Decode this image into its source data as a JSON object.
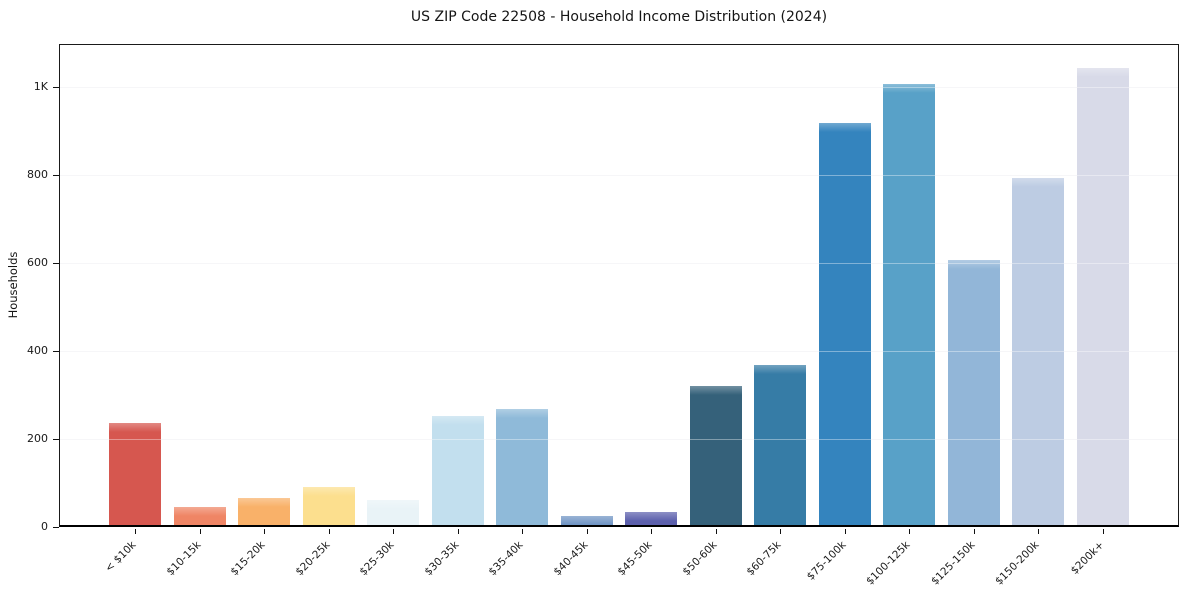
{
  "colors": {
    "figure_background": "#ffffff",
    "text": "#151515",
    "spine": "#1a1a1a",
    "gridline": "#f0f0f4"
  },
  "chart_data": {
    "type": "bar",
    "title": "US ZIP Code 22508 - Household Income Distribution (2024)",
    "xlabel": "",
    "ylabel": "Households",
    "ylim": [
      0,
      1097
    ],
    "grid": "horizontal-faint",
    "legend": "none",
    "categories": [
      "< $10k",
      "$10-15k",
      "$15-20k",
      "$20-25k",
      "$25-30k",
      "$30-35k",
      "$35-40k",
      "$40-45k",
      "$45-50k",
      "$50-60k",
      "$60-75k",
      "$75-100k",
      "$100-125k",
      "$125-150k",
      "$150-200k",
      "$200k+"
    ],
    "values": [
      235,
      46,
      66,
      90,
      62,
      251,
      268,
      25,
      34,
      320,
      367,
      918,
      1005,
      606,
      793,
      1043
    ],
    "bar_colors": [
      "#d6574f",
      "#ef8565",
      "#f9b169",
      "#fcdf8e",
      "#e9f3f7",
      "#c2dfee",
      "#8fbad9",
      "#6e93c4",
      "#5c60ac",
      "#35617a",
      "#367ca6",
      "#3484be",
      "#58a1c8",
      "#92b6d8",
      "#bdcce3",
      "#d8dae8"
    ],
    "yticks": [
      {
        "value": 0,
        "label": "0"
      },
      {
        "value": 200,
        "label": "200"
      },
      {
        "value": 400,
        "label": "400"
      },
      {
        "value": 600,
        "label": "600"
      },
      {
        "value": 800,
        "label": "800"
      },
      {
        "value": 1000,
        "label": "1K"
      }
    ]
  }
}
